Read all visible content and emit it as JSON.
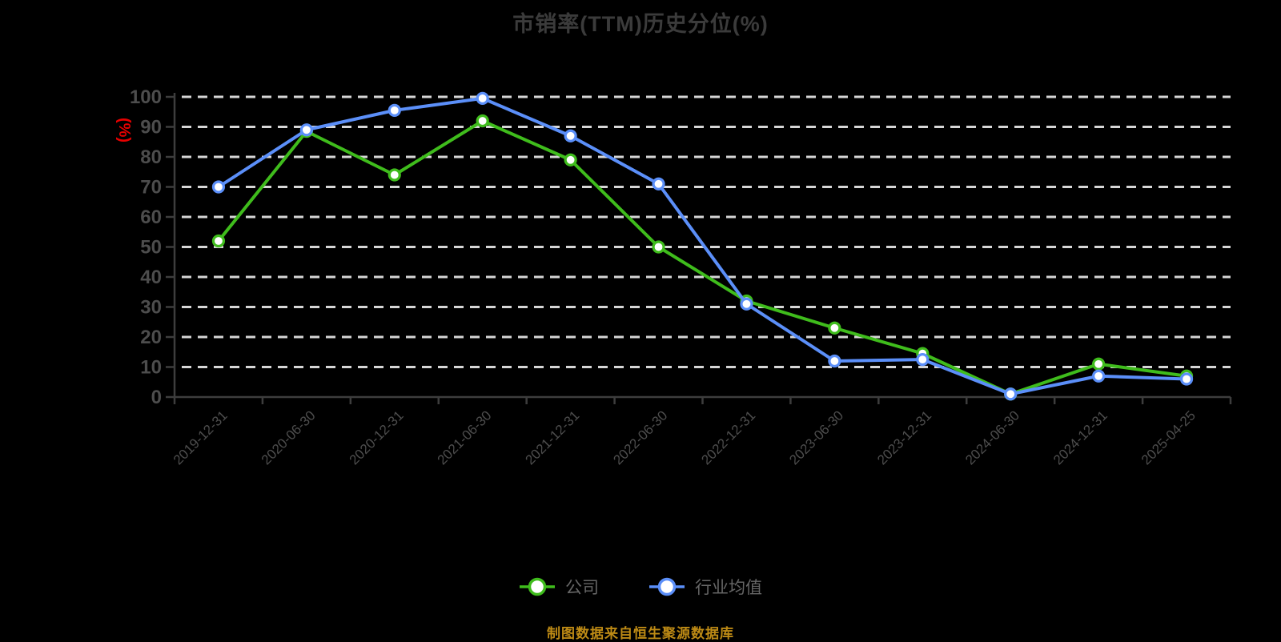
{
  "title": "市销率(TTM)历史分位(%)",
  "footer": "制图数据来自恒生聚源数据库",
  "colors": {
    "background": "#000000",
    "title_text": "#3b3b3b",
    "axis_text": "#4d4d4d",
    "unit_text": "#e60000",
    "grid_line": "#d6d6d6",
    "axis_line": "#3d3d3d",
    "legend_text": "#666666",
    "footer_text": "#bd8a15",
    "company_series": "#3fbc1c",
    "industry_series": "#5b8ff9"
  },
  "chart_data": {
    "type": "line",
    "title": "市销率(TTM)历史分位(%)",
    "xlabel": "",
    "ylabel": "(%)",
    "ylim": [
      0,
      100
    ],
    "ytick_step": 10,
    "grid": true,
    "grid_style": "dashed",
    "legend_position": "bottom",
    "marker": "circle-white-fill",
    "categories": [
      "2019-12-31",
      "2020-06-30",
      "2020-12-31",
      "2021-06-30",
      "2021-12-31",
      "2022-06-30",
      "2022-12-31",
      "2023-06-30",
      "2023-12-31",
      "2024-06-30",
      "2024-12-31",
      "2025-04-25"
    ],
    "series": [
      {
        "name": "公司",
        "color": "#3fbc1c",
        "values": [
          52,
          88.5,
          74,
          92,
          79,
          50,
          32,
          23,
          14.5,
          1,
          11,
          7
        ]
      },
      {
        "name": "行业均值",
        "color": "#5b8ff9",
        "values": [
          70,
          89,
          95.5,
          99.5,
          87,
          71,
          31,
          12,
          12.5,
          1,
          7,
          6
        ]
      }
    ]
  }
}
